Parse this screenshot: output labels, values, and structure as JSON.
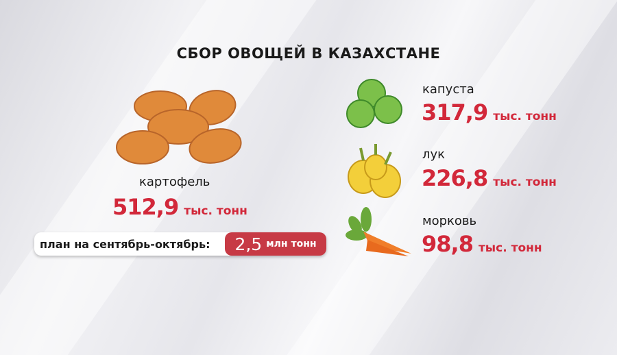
{
  "title": "СБОР ОВОЩЕЙ В КАЗАХСТАНЕ",
  "accent_color": "#d2283a",
  "potato": {
    "label": "картофель",
    "value": "512,9",
    "unit": "тыс. тонн",
    "icon": "potato-icon"
  },
  "plan": {
    "label": "план на сентябрь-октябрь:",
    "value": "2,5",
    "unit": "млн тонн"
  },
  "items": [
    {
      "label": "капуста",
      "value": "317,9",
      "unit": "тыс. тонн",
      "icon": "cabbage-icon"
    },
    {
      "label": "лук",
      "value": "226,8",
      "unit": "тыс. тонн",
      "icon": "onion-icon"
    },
    {
      "label": "морковь",
      "value": "98,8",
      "unit": "тыс. тонн",
      "icon": "carrot-icon"
    }
  ]
}
